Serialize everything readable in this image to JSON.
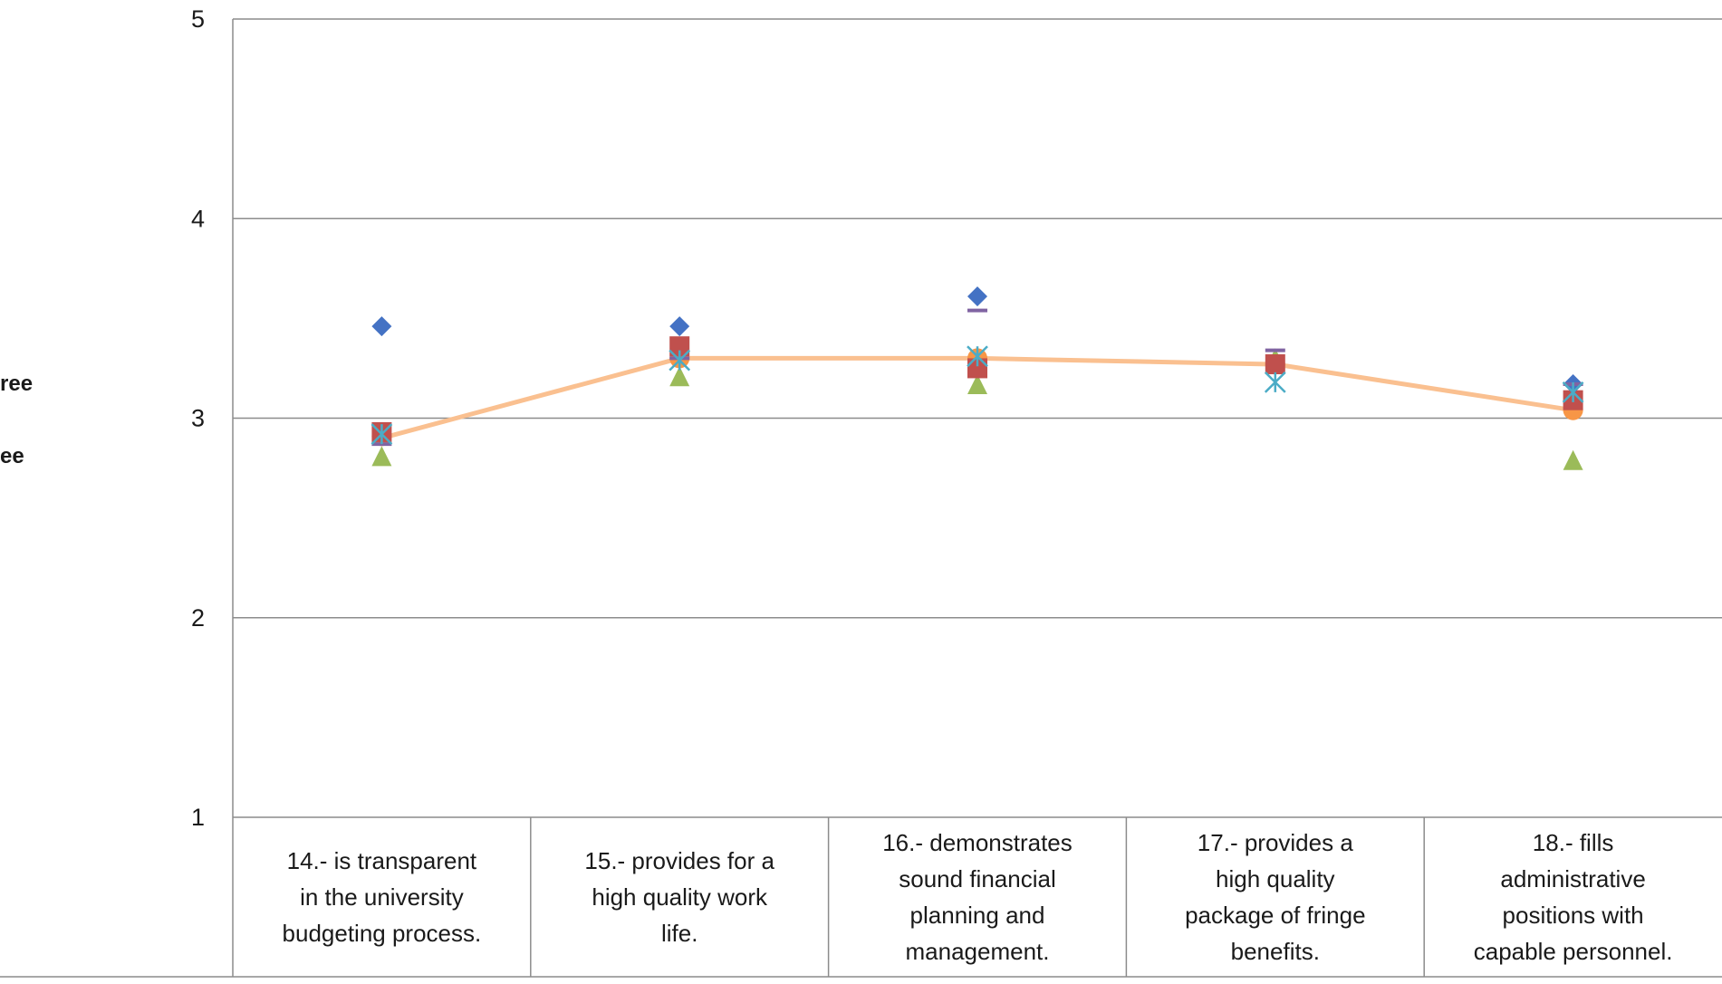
{
  "chart_data": {
    "type": "scatter",
    "ylim": [
      1,
      5
    ],
    "yticks": [
      "1",
      "2",
      "3",
      "4",
      "5"
    ],
    "grid": true,
    "categories": [
      [
        "14.- is transparent",
        "in the university",
        "budgeting process."
      ],
      [
        "15.- provides for a",
        "high quality work",
        "life."
      ],
      [
        "16.- demonstrates",
        "sound financial",
        "planning and",
        "management."
      ],
      [
        "17.- provides a",
        "high quality",
        "package of fringe",
        "benefits."
      ],
      [
        "18.- fills",
        "administrative",
        "positions with",
        "capable personnel."
      ]
    ],
    "legend_fragments": [
      "ree",
      "ee"
    ],
    "series": [
      {
        "marker": "diamond",
        "color": "#4472C4",
        "values": [
          3.46,
          3.46,
          3.61,
          null,
          3.17
        ]
      },
      {
        "marker": "square",
        "color": "#C0504D",
        "values": [
          2.93,
          3.36,
          3.25,
          3.27,
          3.09
        ]
      },
      {
        "marker": "triangle",
        "color": "#9BBB59",
        "values": [
          2.81,
          3.21,
          3.17,
          3.3,
          2.79
        ]
      },
      {
        "marker": "dash",
        "color": "#8064A2",
        "values": [
          2.87,
          3.3,
          3.54,
          3.34,
          3.17
        ]
      },
      {
        "marker": "asterisk",
        "color": "#4BACC6",
        "values": [
          2.92,
          3.29,
          3.31,
          3.18,
          3.13
        ]
      },
      {
        "marker": "circle",
        "color": "#F79646",
        "values": [
          2.91,
          3.3,
          3.3,
          3.27,
          3.04
        ]
      }
    ],
    "average_line": {
      "color": "#FAC090",
      "values": [
        2.9,
        3.3,
        3.3,
        3.27,
        3.04
      ]
    }
  }
}
